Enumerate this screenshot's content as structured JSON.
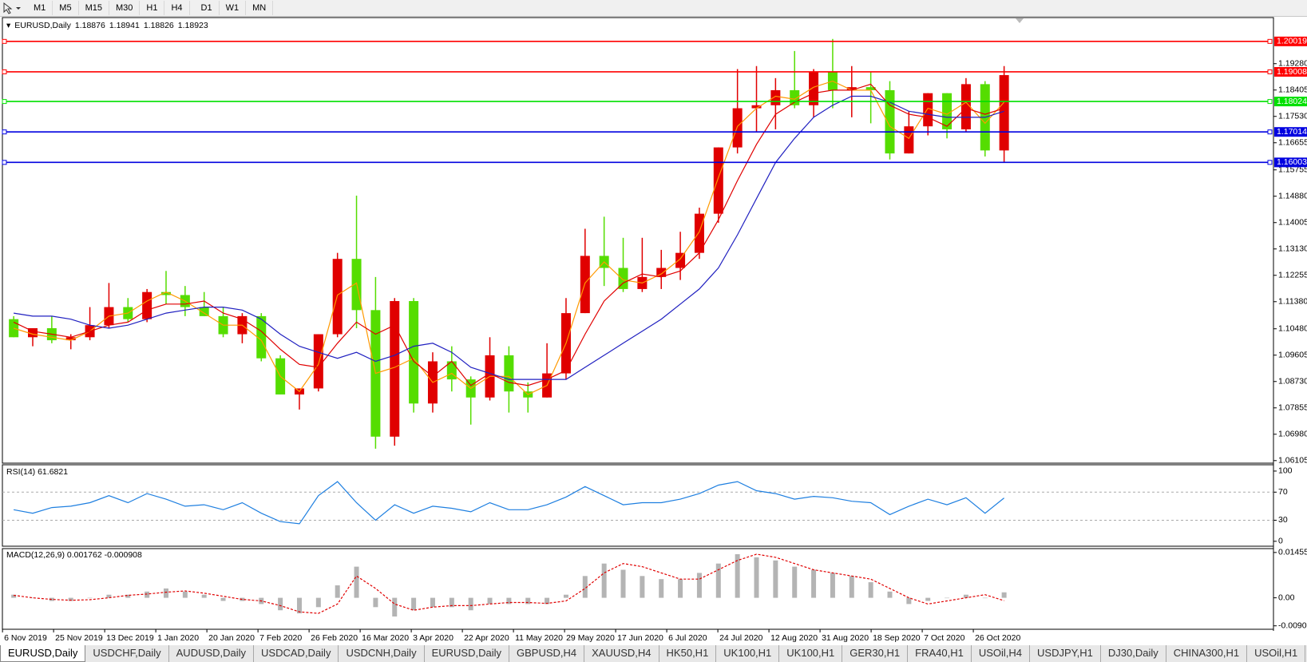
{
  "toolbar": {
    "buttons": [
      "M1",
      "M5",
      "M15",
      "M30",
      "H1",
      "H4",
      "D1",
      "W1",
      "MN"
    ]
  },
  "chart_data": [
    {
      "type": "candlestick",
      "symbol": "EURUSD,Daily",
      "quotes": [
        1.18876,
        1.18941,
        1.18826,
        1.18923
      ],
      "up_color": "#e00000",
      "down_color": "#55dd00",
      "ylim": [
        1.0602,
        1.2081
      ],
      "yticks": [
        {
          "value": 1.1928,
          "label": "1.19280"
        },
        1.18405,
        {
          "value": 1.1753,
          "label": "1.17530"
        },
        1.16655,
        1.15755,
        {
          "value": 1.1488,
          "label": "1.14880"
        },
        1.14005,
        {
          "value": 1.1313,
          "label": "1.13130"
        },
        1.12255,
        {
          "value": 1.1138,
          "label": "1.11380"
        },
        {
          "value": 1.1048,
          "label": "1.10480"
        },
        1.09605,
        {
          "value": 1.0873,
          "label": "1.08730"
        },
        1.07855,
        {
          "value": 1.0698,
          "label": "1.06980"
        },
        1.06105
      ],
      "levels": [
        {
          "value": 1.20019,
          "color": "#ff0000"
        },
        {
          "value": 1.19008,
          "color": "#ff0000"
        },
        {
          "value": 1.18024,
          "color": "#00e000"
        },
        {
          "value": 1.17014,
          "color": "#0000e0"
        },
        {
          "value": 1.16003,
          "color": "#0000e0"
        }
      ],
      "ohlc": [
        [
          1.108,
          1.109,
          1.102,
          1.102
        ],
        [
          1.102,
          1.105,
          1.099,
          1.105
        ],
        [
          1.105,
          1.109,
          1.1,
          1.101
        ],
        [
          1.101,
          1.103,
          1.098,
          1.102
        ],
        [
          1.102,
          1.112,
          1.101,
          1.106
        ],
        [
          1.106,
          1.12,
          1.105,
          1.112
        ],
        [
          1.112,
          1.115,
          1.107,
          1.108
        ],
        [
          1.108,
          1.118,
          1.107,
          1.117
        ],
        [
          1.117,
          1.124,
          1.113,
          1.116
        ],
        [
          1.116,
          1.119,
          1.109,
          1.112
        ],
        [
          1.112,
          1.117,
          1.109,
          1.109
        ],
        [
          1.109,
          1.112,
          1.102,
          1.103
        ],
        [
          1.103,
          1.11,
          1.1,
          1.109
        ],
        [
          1.109,
          1.11,
          1.094,
          1.095
        ],
        [
          1.095,
          1.096,
          1.083,
          1.083
        ],
        [
          1.083,
          1.085,
          1.078,
          1.085
        ],
        [
          1.085,
          1.103,
          1.084,
          1.103
        ],
        [
          1.103,
          1.13,
          1.102,
          1.128
        ],
        [
          1.128,
          1.149,
          1.105,
          1.111
        ],
        [
          1.111,
          1.122,
          1.065,
          1.069
        ],
        [
          1.069,
          1.115,
          1.066,
          1.114
        ],
        [
          1.114,
          1.115,
          1.077,
          1.08
        ],
        [
          1.08,
          1.097,
          1.077,
          1.094
        ],
        [
          1.094,
          1.099,
          1.084,
          1.088
        ],
        [
          1.088,
          1.089,
          1.073,
          1.082
        ],
        [
          1.082,
          1.102,
          1.081,
          1.096
        ],
        [
          1.096,
          1.099,
          1.077,
          1.084
        ],
        [
          1.084,
          1.087,
          1.077,
          1.082
        ],
        [
          1.082,
          1.1,
          1.082,
          1.09
        ],
        [
          1.09,
          1.115,
          1.088,
          1.11
        ],
        [
          1.11,
          1.138,
          1.11,
          1.129
        ],
        [
          1.129,
          1.142,
          1.119,
          1.125
        ],
        [
          1.125,
          1.135,
          1.117,
          1.118
        ],
        [
          1.118,
          1.135,
          1.117,
          1.122
        ],
        [
          1.122,
          1.131,
          1.118,
          1.125
        ],
        [
          1.125,
          1.137,
          1.121,
          1.13
        ],
        [
          1.13,
          1.145,
          1.128,
          1.143
        ],
        [
          1.143,
          1.165,
          1.14,
          1.165
        ],
        [
          1.165,
          1.191,
          1.163,
          1.178
        ],
        [
          1.178,
          1.192,
          1.17,
          1.179
        ],
        [
          1.179,
          1.188,
          1.171,
          1.184
        ],
        [
          1.184,
          1.197,
          1.178,
          1.179
        ],
        [
          1.179,
          1.191,
          1.175,
          1.19
        ],
        [
          1.19,
          1.201,
          1.178,
          1.184
        ],
        [
          1.184,
          1.192,
          1.175,
          1.185
        ],
        [
          1.185,
          1.19,
          1.173,
          1.184
        ],
        [
          1.184,
          1.187,
          1.161,
          1.163
        ],
        [
          1.163,
          1.177,
          1.163,
          1.172
        ],
        [
          1.172,
          1.183,
          1.169,
          1.183
        ],
        [
          1.183,
          1.183,
          1.168,
          1.171
        ],
        [
          1.171,
          1.188,
          1.17,
          1.186
        ],
        [
          1.186,
          1.187,
          1.162,
          1.164
        ],
        [
          1.164,
          1.192,
          1.16,
          1.189
        ]
      ],
      "lines": [
        {
          "color": "#ff9900",
          "values": [
            1.105,
            1.103,
            1.102,
            1.101,
            1.104,
            1.109,
            1.11,
            1.114,
            1.117,
            1.114,
            1.11,
            1.106,
            1.106,
            1.101,
            1.089,
            1.084,
            1.093,
            1.116,
            1.12,
            1.09,
            1.092,
            1.095,
            1.087,
            1.09,
            1.085,
            1.089,
            1.089,
            1.083,
            1.086,
            1.1,
            1.12,
            1.127,
            1.121,
            1.12,
            1.123,
            1.128,
            1.137,
            1.155,
            1.172,
            1.178,
            1.182,
            1.181,
            1.185,
            1.187,
            1.184,
            1.184,
            1.172,
            1.168,
            1.178,
            1.176,
            1.18,
            1.173,
            1.18
          ]
        },
        {
          "color": "#e00000",
          "values": [
            1.107,
            1.104,
            1.103,
            1.102,
            1.104,
            1.106,
            1.107,
            1.111,
            1.113,
            1.113,
            1.114,
            1.11,
            1.108,
            1.104,
            1.098,
            1.093,
            1.092,
            1.1,
            1.107,
            1.103,
            1.106,
            1.094,
            1.089,
            1.094,
            1.086,
            1.09,
            1.087,
            1.086,
            1.088,
            1.091,
            1.103,
            1.114,
            1.12,
            1.123,
            1.122,
            1.124,
            1.13,
            1.141,
            1.154,
            1.166,
            1.176,
            1.18,
            1.183,
            1.184,
            1.184,
            1.186,
            1.179,
            1.176,
            1.175,
            1.172,
            1.178,
            1.176,
            1.178
          ]
        },
        {
          "color": "#2020c0",
          "values": [
            1.11,
            1.109,
            1.109,
            1.108,
            1.106,
            1.105,
            1.106,
            1.108,
            1.11,
            1.111,
            1.112,
            1.112,
            1.111,
            1.108,
            1.103,
            1.099,
            1.097,
            1.095,
            1.097,
            1.094,
            1.096,
            1.099,
            1.1,
            1.097,
            1.092,
            1.09,
            1.088,
            1.088,
            1.088,
            1.088,
            1.092,
            1.096,
            1.1,
            1.104,
            1.108,
            1.113,
            1.118,
            1.125,
            1.136,
            1.148,
            1.16,
            1.168,
            1.175,
            1.179,
            1.182,
            1.182,
            1.18,
            1.177,
            1.176,
            1.175,
            1.175,
            1.175,
            1.177
          ]
        }
      ]
    },
    {
      "type": "line",
      "title": "RSI(14) 61.6821",
      "color": "#1e7fe0",
      "ylim": [
        -7,
        109
      ],
      "yticks": [
        100,
        70,
        30,
        0
      ],
      "levels": [
        70,
        30
      ],
      "values": [
        45,
        40,
        48,
        50,
        55,
        65,
        55,
        68,
        60,
        50,
        52,
        45,
        55,
        40,
        28,
        25,
        65,
        85,
        55,
        30,
        52,
        40,
        50,
        47,
        42,
        55,
        45,
        45,
        52,
        63,
        78,
        65,
        52,
        55,
        55,
        60,
        68,
        80,
        85,
        72,
        68,
        60,
        64,
        62,
        57,
        55,
        38,
        50,
        60,
        52,
        62,
        40,
        61.6821
      ]
    },
    {
      "type": "bar",
      "title": "MACD(12,26,9) 0.001762 -0.000908",
      "ylim": [
        -0.0101,
        0.0158
      ],
      "yticks": [
        0.014556,
        {
          "value": 0,
          "label": "0.00"
        },
        {
          "value": -0.009,
          "label": "-0.00900"
        }
      ],
      "color": "#b4b4b4",
      "signal_color": "#e00000",
      "values": [
        0.001,
        0,
        -0.001,
        -0.001,
        0,
        0.001,
        0.001,
        0.002,
        0.003,
        0.002,
        0.001,
        -0.001,
        -0.001,
        -0.002,
        -0.004,
        -0.005,
        -0.003,
        0.004,
        0.01,
        -0.003,
        -0.006,
        -0.004,
        -0.003,
        -0.003,
        -0.004,
        -0.002,
        -0.002,
        -0.002,
        -0.002,
        0.001,
        0.007,
        0.011,
        0.009,
        0.007,
        0.006,
        0.006,
        0.008,
        0.011,
        0.014,
        0.013,
        0.012,
        0.01,
        0.009,
        0.008,
        0.007,
        0.005,
        0.002,
        -0.002,
        -0.001,
        0,
        0.001,
        0,
        0.001762
      ],
      "signal": [
        0.0008,
        0,
        -0.0005,
        -0.0008,
        -0.0006,
        0,
        0.0008,
        0.0012,
        0.0018,
        0.0022,
        0.0015,
        0.0005,
        -0.0005,
        -0.001,
        -0.0025,
        -0.0045,
        -0.005,
        -0.002,
        0.007,
        0.003,
        -0.002,
        -0.004,
        -0.003,
        -0.0025,
        -0.0025,
        -0.002,
        -0.0015,
        -0.0015,
        -0.0018,
        -0.001,
        0.003,
        0.008,
        0.011,
        0.01,
        0.008,
        0.006,
        0.006,
        0.009,
        0.012,
        0.014,
        0.013,
        0.011,
        0.009,
        0.008,
        0.007,
        0.006,
        0.003,
        0,
        -0.002,
        -0.001,
        0,
        0.001,
        -0.000908
      ]
    }
  ],
  "time_axis": [
    "6 Nov 2019",
    "25 Nov 2019",
    "13 Dec 2019",
    "1 Jan 2020",
    "20 Jan 2020",
    "7 Feb 2020",
    "26 Feb 2020",
    "16 Mar 2020",
    "3 Apr 2020",
    "22 Apr 2020",
    "11 May 2020",
    "29 May 2020",
    "17 Jun 2020",
    "6 Jul 2020",
    "24 Jul 2020",
    "12 Aug 2020",
    "31 Aug 2020",
    "18 Sep 2020",
    "7 Oct 2020",
    "26 Oct 2020"
  ],
  "tabs": [
    "EURUSD,Daily",
    "USDCHF,Daily",
    "AUDUSD,Daily",
    "USDCAD,Daily",
    "USDCNH,Daily",
    "EURUSD,Daily",
    "GBPUSD,H4",
    "XAUUSD,H4",
    "HK50,H1",
    "UK100,H1",
    "UK100,H1",
    "GER30,H1",
    "FRA40,H1",
    "USOil,H4",
    "USDJPY,H1",
    "DJ30,Daily",
    "CHINA300,H1",
    "USOil,H1"
  ]
}
